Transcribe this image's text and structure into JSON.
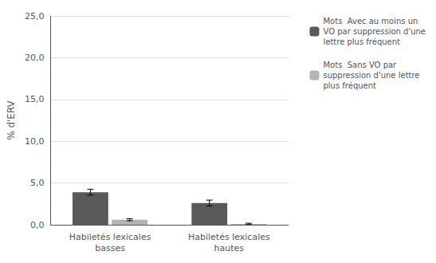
{
  "chart_data": {
    "type": "bar",
    "categories": [
      "Habiletés lexicales\nbasses",
      "Habiletés lexicales\nhautes"
    ],
    "series": [
      {
        "name": "Mots  Avec au moins un\nVO par suppression d'une\nlettre plus fréquent",
        "color": "#595959",
        "values": [
          3.9,
          2.6
        ],
        "errors": [
          0.35,
          0.35
        ]
      },
      {
        "name": "Mots  Sans VO par\nsuppression d'une lettre\nplus fréquent",
        "color": "#b3b3b3",
        "values": [
          0.6,
          0.1
        ],
        "errors": [
          0.12,
          0.08
        ]
      }
    ],
    "ylabel": "% d'ERV",
    "ylim": [
      0,
      25
    ],
    "yticks": [
      {
        "value": 0,
        "label": "0,0"
      },
      {
        "value": 5,
        "label": "5,0"
      },
      {
        "value": 10,
        "label": "10,0"
      },
      {
        "value": 15,
        "label": "15,0"
      },
      {
        "value": 20,
        "label": "20,0"
      },
      {
        "value": 25,
        "label": "25,0"
      }
    ],
    "grid": true,
    "legend": "right"
  }
}
